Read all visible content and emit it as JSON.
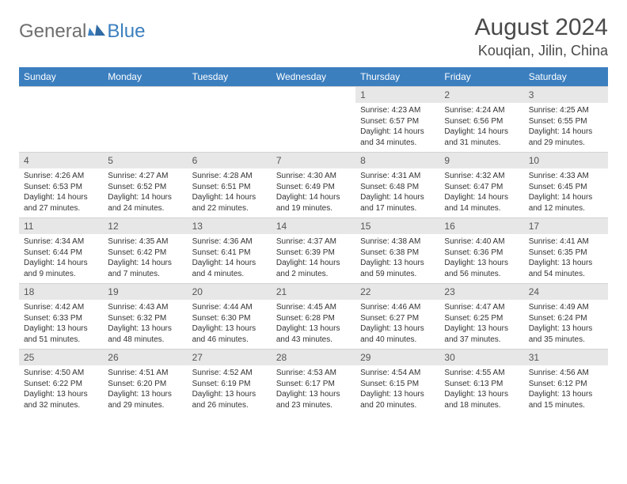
{
  "brand": {
    "name_part1": "General",
    "name_part2": "Blue",
    "text_color": "#6e6e6e",
    "accent_color": "#3b7fbf"
  },
  "title": {
    "month_year": "August 2024",
    "location": "Kouqian, Jilin, China",
    "title_fontsize": 30,
    "location_fontsize": 18,
    "color": "#4a4a4a"
  },
  "table_style": {
    "header_bg": "#3b7fbf",
    "header_text_color": "#ffffff",
    "daynum_bg": "#e7e7e7",
    "daynum_text_color": "#555555",
    "cell_bg": "#ffffff",
    "cell_text_color": "#333333",
    "border_color": "#d3d3d3",
    "header_fontsize": 12,
    "daynum_fontsize": 12,
    "body_fontsize": 10,
    "columns": 7
  },
  "weekdays": [
    "Sunday",
    "Monday",
    "Tuesday",
    "Wednesday",
    "Thursday",
    "Friday",
    "Saturday"
  ],
  "weeks": [
    {
      "nums": [
        "",
        "",
        "",
        "",
        "1",
        "2",
        "3"
      ],
      "cells": [
        "",
        "",
        "",
        "",
        "Sunrise: 4:23 AM\nSunset: 6:57 PM\nDaylight: 14 hours and 34 minutes.",
        "Sunrise: 4:24 AM\nSunset: 6:56 PM\nDaylight: 14 hours and 31 minutes.",
        "Sunrise: 4:25 AM\nSunset: 6:55 PM\nDaylight: 14 hours and 29 minutes."
      ]
    },
    {
      "nums": [
        "4",
        "5",
        "6",
        "7",
        "8",
        "9",
        "10"
      ],
      "cells": [
        "Sunrise: 4:26 AM\nSunset: 6:53 PM\nDaylight: 14 hours and 27 minutes.",
        "Sunrise: 4:27 AM\nSunset: 6:52 PM\nDaylight: 14 hours and 24 minutes.",
        "Sunrise: 4:28 AM\nSunset: 6:51 PM\nDaylight: 14 hours and 22 minutes.",
        "Sunrise: 4:30 AM\nSunset: 6:49 PM\nDaylight: 14 hours and 19 minutes.",
        "Sunrise: 4:31 AM\nSunset: 6:48 PM\nDaylight: 14 hours and 17 minutes.",
        "Sunrise: 4:32 AM\nSunset: 6:47 PM\nDaylight: 14 hours and 14 minutes.",
        "Sunrise: 4:33 AM\nSunset: 6:45 PM\nDaylight: 14 hours and 12 minutes."
      ]
    },
    {
      "nums": [
        "11",
        "12",
        "13",
        "14",
        "15",
        "16",
        "17"
      ],
      "cells": [
        "Sunrise: 4:34 AM\nSunset: 6:44 PM\nDaylight: 14 hours and 9 minutes.",
        "Sunrise: 4:35 AM\nSunset: 6:42 PM\nDaylight: 14 hours and 7 minutes.",
        "Sunrise: 4:36 AM\nSunset: 6:41 PM\nDaylight: 14 hours and 4 minutes.",
        "Sunrise: 4:37 AM\nSunset: 6:39 PM\nDaylight: 14 hours and 2 minutes.",
        "Sunrise: 4:38 AM\nSunset: 6:38 PM\nDaylight: 13 hours and 59 minutes.",
        "Sunrise: 4:40 AM\nSunset: 6:36 PM\nDaylight: 13 hours and 56 minutes.",
        "Sunrise: 4:41 AM\nSunset: 6:35 PM\nDaylight: 13 hours and 54 minutes."
      ]
    },
    {
      "nums": [
        "18",
        "19",
        "20",
        "21",
        "22",
        "23",
        "24"
      ],
      "cells": [
        "Sunrise: 4:42 AM\nSunset: 6:33 PM\nDaylight: 13 hours and 51 minutes.",
        "Sunrise: 4:43 AM\nSunset: 6:32 PM\nDaylight: 13 hours and 48 minutes.",
        "Sunrise: 4:44 AM\nSunset: 6:30 PM\nDaylight: 13 hours and 46 minutes.",
        "Sunrise: 4:45 AM\nSunset: 6:28 PM\nDaylight: 13 hours and 43 minutes.",
        "Sunrise: 4:46 AM\nSunset: 6:27 PM\nDaylight: 13 hours and 40 minutes.",
        "Sunrise: 4:47 AM\nSunset: 6:25 PM\nDaylight: 13 hours and 37 minutes.",
        "Sunrise: 4:49 AM\nSunset: 6:24 PM\nDaylight: 13 hours and 35 minutes."
      ]
    },
    {
      "nums": [
        "25",
        "26",
        "27",
        "28",
        "29",
        "30",
        "31"
      ],
      "cells": [
        "Sunrise: 4:50 AM\nSunset: 6:22 PM\nDaylight: 13 hours and 32 minutes.",
        "Sunrise: 4:51 AM\nSunset: 6:20 PM\nDaylight: 13 hours and 29 minutes.",
        "Sunrise: 4:52 AM\nSunset: 6:19 PM\nDaylight: 13 hours and 26 minutes.",
        "Sunrise: 4:53 AM\nSunset: 6:17 PM\nDaylight: 13 hours and 23 minutes.",
        "Sunrise: 4:54 AM\nSunset: 6:15 PM\nDaylight: 13 hours and 20 minutes.",
        "Sunrise: 4:55 AM\nSunset: 6:13 PM\nDaylight: 13 hours and 18 minutes.",
        "Sunrise: 4:56 AM\nSunset: 6:12 PM\nDaylight: 13 hours and 15 minutes."
      ]
    }
  ]
}
